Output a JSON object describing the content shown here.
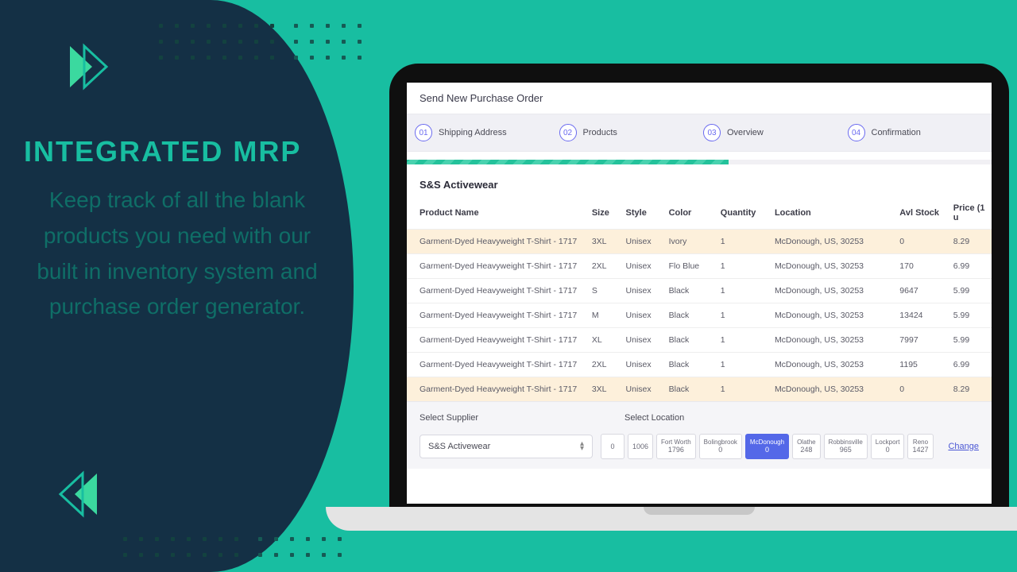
{
  "marketing": {
    "heading": "INTEGRATED MRP",
    "subheading": "Keep track of all the blank products you need with our built in inventory system and purchase order generator."
  },
  "colors": {
    "bg_teal": "#18bea1",
    "panel_navy": "#143045",
    "accent_green": "#3bd99f",
    "step_accent": "#6a6af0",
    "row_highlight": "#fdf0db",
    "location_active": "#5468e8"
  },
  "screen": {
    "title": "Send New Purchase Order",
    "steps": [
      {
        "num": "01",
        "label": "Shipping Address"
      },
      {
        "num": "02",
        "label": "Products"
      },
      {
        "num": "03",
        "label": "Overview"
      },
      {
        "num": "04",
        "label": "Confirmation"
      }
    ],
    "progress_pct": 55,
    "supplier_header": "S&S Activewear",
    "columns": [
      "Product Name",
      "Size",
      "Style",
      "Color",
      "Quantity",
      "Location",
      "Avl Stock",
      "Price (1 u"
    ],
    "rows": [
      {
        "name": "Garment-Dyed Heavyweight T-Shirt - 1717",
        "size": "3XL",
        "style": "Unisex",
        "color": "Ivory",
        "qty": "1",
        "location": "McDonough, US, 30253",
        "stock": "0",
        "price": "8.29",
        "highlight": true
      },
      {
        "name": "Garment-Dyed Heavyweight T-Shirt - 1717",
        "size": "2XL",
        "style": "Unisex",
        "color": "Flo Blue",
        "qty": "1",
        "location": "McDonough, US, 30253",
        "stock": "170",
        "price": "6.99",
        "highlight": false
      },
      {
        "name": "Garment-Dyed Heavyweight T-Shirt - 1717",
        "size": "S",
        "style": "Unisex",
        "color": "Black",
        "qty": "1",
        "location": "McDonough, US, 30253",
        "stock": "9647",
        "price": "5.99",
        "highlight": false
      },
      {
        "name": "Garment-Dyed Heavyweight T-Shirt - 1717",
        "size": "M",
        "style": "Unisex",
        "color": "Black",
        "qty": "1",
        "location": "McDonough, US, 30253",
        "stock": "13424",
        "price": "5.99",
        "highlight": false
      },
      {
        "name": "Garment-Dyed Heavyweight T-Shirt - 1717",
        "size": "XL",
        "style": "Unisex",
        "color": "Black",
        "qty": "1",
        "location": "McDonough, US, 30253",
        "stock": "7997",
        "price": "5.99",
        "highlight": false
      },
      {
        "name": "Garment-Dyed Heavyweight T-Shirt - 1717",
        "size": "2XL",
        "style": "Unisex",
        "color": "Black",
        "qty": "1",
        "location": "McDonough, US, 30253",
        "stock": "1195",
        "price": "6.99",
        "highlight": false
      },
      {
        "name": "Garment-Dyed Heavyweight T-Shirt - 1717",
        "size": "3XL",
        "style": "Unisex",
        "color": "Black",
        "qty": "1",
        "location": "McDonough, US, 30253",
        "stock": "0",
        "price": "8.29",
        "highlight": true
      }
    ],
    "select_supplier_label": "Select Supplier",
    "select_location_label": "Select Location",
    "supplier_selected": "S&S Activewear",
    "locations": [
      {
        "name": "",
        "count": "0",
        "active": false
      },
      {
        "name": "",
        "count": "1006",
        "active": false
      },
      {
        "name": "Fort Worth",
        "count": "1796",
        "active": false
      },
      {
        "name": "Bolingbrook",
        "count": "0",
        "active": false
      },
      {
        "name": "McDonough",
        "count": "0",
        "active": true
      },
      {
        "name": "Olathe",
        "count": "248",
        "active": false
      },
      {
        "name": "Robbinsville",
        "count": "965",
        "active": false
      },
      {
        "name": "Lockport",
        "count": "0",
        "active": false
      },
      {
        "name": "Reno",
        "count": "1427",
        "active": false
      }
    ],
    "change_link": "Change"
  }
}
